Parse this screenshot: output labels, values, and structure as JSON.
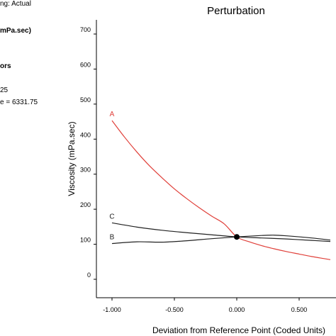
{
  "sidebar": {
    "design_space": "ng: Actual",
    "response": "mPa.sec)",
    "factors": "ors",
    "a_value": "25",
    "b_value": "e = 6331.75"
  },
  "chart_data": {
    "type": "line",
    "title": "Perturbation",
    "xlabel": "Deviation from Reference Point (Coded Units)",
    "ylabel": "Viscosity (mPa.sec)",
    "xlim": [
      -1.0,
      0.75
    ],
    "ylim": [
      -25,
      750
    ],
    "x_ticks": [
      -1.0,
      -0.5,
      0.0,
      0.5
    ],
    "x_tick_labels": [
      "-1.000",
      "-0.500",
      "0.000",
      "0.500"
    ],
    "y_ticks": [
      0,
      100,
      200,
      300,
      400,
      500,
      600,
      700
    ],
    "y_tick_labels": [
      "0",
      "100",
      "200",
      "300",
      "400",
      "500",
      "600",
      "700"
    ],
    "reference_point": {
      "x": 0.0,
      "y": 121
    },
    "series": [
      {
        "name": "A",
        "color": "#e0403a",
        "x": [
          -1.0,
          -0.9,
          -0.8,
          -0.7,
          -0.6,
          -0.5,
          -0.4,
          -0.3,
          -0.2,
          -0.1,
          0.0,
          0.1,
          0.2,
          0.3,
          0.4,
          0.5,
          0.6,
          0.7,
          0.75
        ],
        "values": [
          453,
          406,
          363,
          324,
          290,
          258,
          230,
          204,
          180,
          158,
          121,
          107,
          96,
          87,
          79,
          72,
          65,
          59,
          56
        ]
      },
      {
        "name": "B",
        "color": "#222222",
        "x": [
          -1.0,
          -0.8,
          -0.6,
          -0.4,
          -0.2,
          0.0,
          0.2,
          0.3,
          0.4,
          0.6,
          0.75
        ],
        "values": [
          102,
          107,
          106,
          110,
          116,
          121,
          125,
          126,
          124,
          118,
          112
        ]
      },
      {
        "name": "C",
        "color": "#222222",
        "x": [
          -1.0,
          -0.8,
          -0.6,
          -0.4,
          -0.2,
          0.0,
          0.2,
          0.4,
          0.6,
          0.75
        ],
        "values": [
          161,
          149,
          140,
          133,
          127,
          121,
          118,
          115,
          111,
          108
        ]
      }
    ]
  }
}
